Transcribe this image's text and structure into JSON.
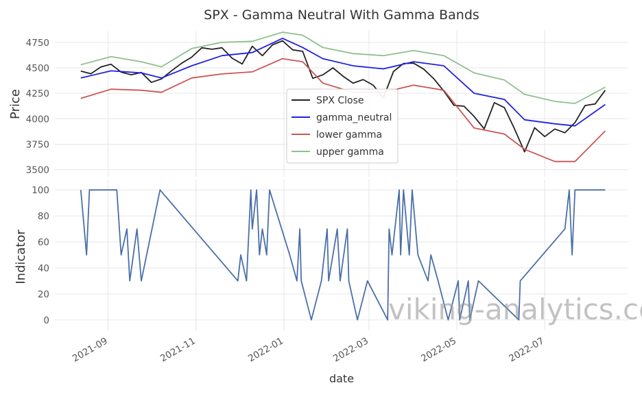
{
  "chart_data": [
    {
      "type": "line",
      "title": "SPX - Gamma Neutral With Gamma Bands",
      "ylabel": "Price",
      "ylim": [
        3430,
        4870
      ],
      "yticks": [
        3500,
        3750,
        4000,
        4250,
        4500,
        4750
      ],
      "legend_position": "center",
      "grid": true,
      "series": [
        {
          "name": "SPX Close",
          "color": "#222222",
          "points": [
            [
              "2021-08-13",
              4468
            ],
            [
              "2021-08-20",
              4442
            ],
            [
              "2021-08-27",
              4509
            ],
            [
              "2021-09-03",
              4535
            ],
            [
              "2021-09-10",
              4458
            ],
            [
              "2021-09-17",
              4432
            ],
            [
              "2021-09-24",
              4455
            ],
            [
              "2021-10-01",
              4357
            ],
            [
              "2021-10-08",
              4391
            ],
            [
              "2021-10-15",
              4471
            ],
            [
              "2021-10-22",
              4545
            ],
            [
              "2021-10-29",
              4605
            ],
            [
              "2021-11-05",
              4697
            ],
            [
              "2021-11-12",
              4682
            ],
            [
              "2021-11-19",
              4697
            ],
            [
              "2021-11-26",
              4594
            ],
            [
              "2021-12-03",
              4538
            ],
            [
              "2021-12-10",
              4712
            ],
            [
              "2021-12-17",
              4620
            ],
            [
              "2021-12-24",
              4725
            ],
            [
              "2021-12-31",
              4766
            ],
            [
              "2022-01-07",
              4677
            ],
            [
              "2022-01-14",
              4662
            ],
            [
              "2022-01-21",
              4397
            ],
            [
              "2022-01-28",
              4431
            ],
            [
              "2022-02-04",
              4500
            ],
            [
              "2022-02-11",
              4418
            ],
            [
              "2022-02-18",
              4349
            ],
            [
              "2022-02-25",
              4385
            ],
            [
              "2022-03-04",
              4329
            ],
            [
              "2022-03-11",
              4204
            ],
            [
              "2022-03-18",
              4463
            ],
            [
              "2022-03-25",
              4543
            ],
            [
              "2022-04-01",
              4546
            ],
            [
              "2022-04-08",
              4488
            ],
            [
              "2022-04-15",
              4393
            ],
            [
              "2022-04-22",
              4272
            ],
            [
              "2022-04-29",
              4132
            ],
            [
              "2022-05-06",
              4123
            ],
            [
              "2022-05-13",
              4023
            ],
            [
              "2022-05-20",
              3901
            ],
            [
              "2022-05-27",
              4158
            ],
            [
              "2022-06-03",
              4109
            ],
            [
              "2022-06-10",
              3901
            ],
            [
              "2022-06-17",
              3675
            ],
            [
              "2022-06-24",
              3912
            ],
            [
              "2022-07-01",
              3825
            ],
            [
              "2022-07-08",
              3899
            ],
            [
              "2022-07-15",
              3863
            ],
            [
              "2022-07-22",
              3962
            ],
            [
              "2022-07-29",
              4130
            ],
            [
              "2022-08-05",
              4145
            ],
            [
              "2022-08-12",
              4280
            ]
          ]
        },
        {
          "name": "gamma_neutral",
          "color": "#1f1fe0",
          "points": [
            [
              "2021-08-13",
              4400
            ],
            [
              "2021-09-03",
              4470
            ],
            [
              "2021-09-24",
              4450
            ],
            [
              "2021-10-08",
              4400
            ],
            [
              "2021-10-29",
              4520
            ],
            [
              "2021-11-19",
              4620
            ],
            [
              "2021-12-10",
              4650
            ],
            [
              "2021-12-31",
              4790
            ],
            [
              "2022-01-14",
              4700
            ],
            [
              "2022-01-28",
              4590
            ],
            [
              "2022-02-18",
              4520
            ],
            [
              "2022-03-11",
              4490
            ],
            [
              "2022-04-01",
              4560
            ],
            [
              "2022-04-22",
              4520
            ],
            [
              "2022-05-13",
              4250
            ],
            [
              "2022-06-03",
              4190
            ],
            [
              "2022-06-17",
              3990
            ],
            [
              "2022-07-08",
              3950
            ],
            [
              "2022-07-22",
              3930
            ],
            [
              "2022-08-12",
              4140
            ]
          ]
        },
        {
          "name": "lower gamma",
          "color": "#cc5555",
          "points": [
            [
              "2021-08-13",
              4200
            ],
            [
              "2021-09-03",
              4290
            ],
            [
              "2021-09-24",
              4280
            ],
            [
              "2021-10-08",
              4260
            ],
            [
              "2021-10-29",
              4400
            ],
            [
              "2021-11-19",
              4440
            ],
            [
              "2021-12-10",
              4460
            ],
            [
              "2021-12-31",
              4590
            ],
            [
              "2022-01-14",
              4560
            ],
            [
              "2022-01-28",
              4350
            ],
            [
              "2022-02-18",
              4260
            ],
            [
              "2022-03-11",
              4260
            ],
            [
              "2022-04-01",
              4330
            ],
            [
              "2022-04-22",
              4280
            ],
            [
              "2022-05-13",
              3910
            ],
            [
              "2022-06-03",
              3850
            ],
            [
              "2022-06-17",
              3700
            ],
            [
              "2022-07-08",
              3580
            ],
            [
              "2022-07-22",
              3580
            ],
            [
              "2022-08-12",
              3880
            ]
          ]
        },
        {
          "name": "upper gamma",
          "color": "#8fbf8f",
          "points": [
            [
              "2021-08-13",
              4530
            ],
            [
              "2021-09-03",
              4610
            ],
            [
              "2021-09-24",
              4560
            ],
            [
              "2021-10-08",
              4510
            ],
            [
              "2021-10-29",
              4690
            ],
            [
              "2021-11-19",
              4750
            ],
            [
              "2021-12-10",
              4760
            ],
            [
              "2021-12-31",
              4850
            ],
            [
              "2022-01-14",
              4820
            ],
            [
              "2022-01-28",
              4700
            ],
            [
              "2022-02-18",
              4640
            ],
            [
              "2022-03-11",
              4620
            ],
            [
              "2022-04-01",
              4670
            ],
            [
              "2022-04-22",
              4620
            ],
            [
              "2022-05-13",
              4450
            ],
            [
              "2022-06-03",
              4380
            ],
            [
              "2022-06-17",
              4240
            ],
            [
              "2022-07-08",
              4170
            ],
            [
              "2022-07-22",
              4150
            ],
            [
              "2022-08-12",
              4310
            ]
          ]
        }
      ]
    },
    {
      "type": "line",
      "ylabel": "Indicator",
      "xlabel": "date",
      "ylim": [
        -8,
        108
      ],
      "yticks": [
        0,
        20,
        40,
        60,
        80,
        100
      ],
      "xlim": [
        "2021-07-26",
        "2022-08-28"
      ],
      "xticks": [
        "2021-09",
        "2021-11",
        "2022-01",
        "2022-03",
        "2022-05",
        "2022-07"
      ],
      "grid": true,
      "series": [
        {
          "color": "#4a6fa8",
          "step": true,
          "points": [
            [
              "2021-08-13",
              100
            ],
            [
              "2021-08-17",
              50
            ],
            [
              "2021-08-19",
              100
            ],
            [
              "2021-09-07",
              100
            ],
            [
              "2021-09-10",
              50
            ],
            [
              "2021-09-14",
              70
            ],
            [
              "2021-09-16",
              30
            ],
            [
              "2021-09-21",
              70
            ],
            [
              "2021-09-24",
              30
            ],
            [
              "2021-10-07",
              100
            ],
            [
              "2021-11-30",
              30
            ],
            [
              "2021-12-02",
              50
            ],
            [
              "2021-12-06",
              30
            ],
            [
              "2021-12-09",
              100
            ],
            [
              "2021-12-10",
              70
            ],
            [
              "2021-12-13",
              100
            ],
            [
              "2021-12-15",
              50
            ],
            [
              "2021-12-17",
              70
            ],
            [
              "2021-12-20",
              50
            ],
            [
              "2021-12-22",
              100
            ],
            [
              "2022-01-05",
              50
            ],
            [
              "2022-01-10",
              30
            ],
            [
              "2022-01-12",
              70
            ],
            [
              "2022-01-13",
              30
            ],
            [
              "2022-01-20",
              0
            ],
            [
              "2022-01-27",
              30
            ],
            [
              "2022-01-31",
              70
            ],
            [
              "2022-02-01",
              30
            ],
            [
              "2022-02-07",
              70
            ],
            [
              "2022-02-09",
              30
            ],
            [
              "2022-02-14",
              70
            ],
            [
              "2022-02-15",
              30
            ],
            [
              "2022-02-21",
              0
            ],
            [
              "2022-02-28",
              30
            ],
            [
              "2022-03-14",
              0
            ],
            [
              "2022-03-15",
              70
            ],
            [
              "2022-03-17",
              50
            ],
            [
              "2022-03-22",
              100
            ],
            [
              "2022-03-23",
              50
            ],
            [
              "2022-03-25",
              100
            ],
            [
              "2022-03-29",
              50
            ],
            [
              "2022-03-31",
              100
            ],
            [
              "2022-04-04",
              50
            ],
            [
              "2022-04-11",
              30
            ],
            [
              "2022-04-13",
              50
            ],
            [
              "2022-04-18",
              30
            ],
            [
              "2022-04-25",
              0
            ],
            [
              "2022-05-02",
              30
            ],
            [
              "2022-05-03",
              0
            ],
            [
              "2022-05-09",
              30
            ],
            [
              "2022-05-10",
              0
            ],
            [
              "2022-05-16",
              30
            ],
            [
              "2022-06-13",
              0
            ],
            [
              "2022-06-14",
              30
            ],
            [
              "2022-07-15",
              70
            ],
            [
              "2022-07-18",
              100
            ],
            [
              "2022-07-20",
              50
            ],
            [
              "2022-07-22",
              100
            ],
            [
              "2022-08-12",
              100
            ]
          ]
        }
      ]
    }
  ],
  "legend": [
    {
      "label": "SPX Close",
      "color": "#222222"
    },
    {
      "label": "gamma_neutral",
      "color": "#1f1fe0"
    },
    {
      "label": "lower gamma",
      "color": "#cc5555"
    },
    {
      "label": "upper gamma",
      "color": "#8fbf8f"
    }
  ],
  "watermark": "viking-analytics.com"
}
